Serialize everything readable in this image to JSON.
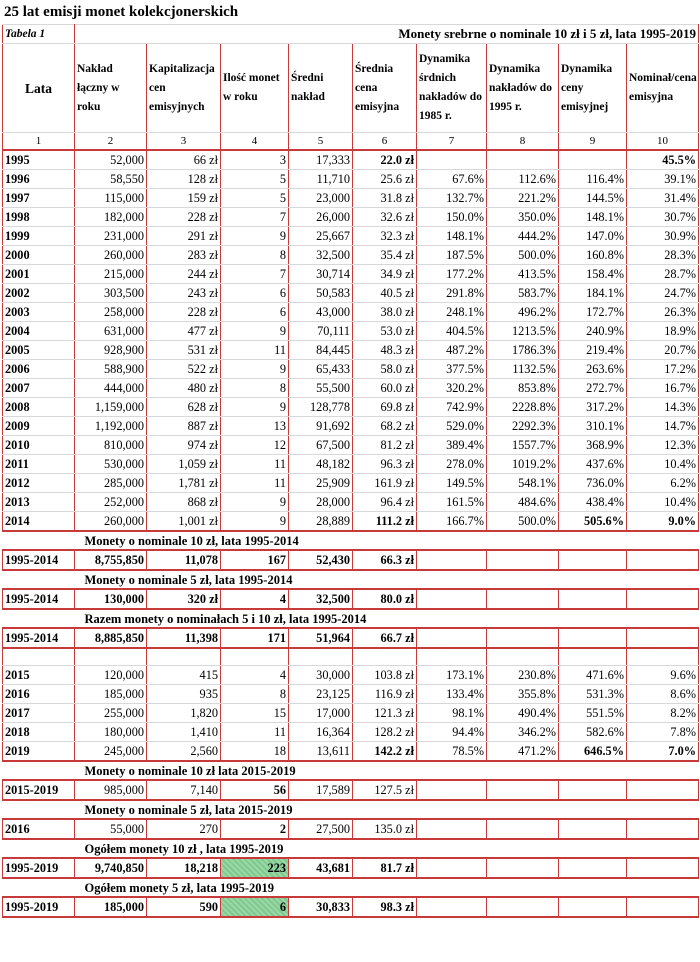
{
  "title": "25 lat emisji monet kolekcjonerskich",
  "table_label": "Tabela 1",
  "table_heading": "Monety srebrne o nominale 10 zł  i 5 zł, lata 1995-2019",
  "headers": [
    "Lata",
    "Nakład łączny w roku",
    "Kapitalizacja cen emisyjnych",
    "Ilość monet w roku",
    "Średni nakład",
    "Średnia cena emisyjna",
    "Dynamika śrdnich nakładów do 1985 r.",
    "Dynamika nakładów do 1995 r.",
    "Dynamika ceny emisyjnej",
    "Nominał/cena emisyjna"
  ],
  "col_numbers": [
    "1",
    "2",
    "3",
    "4",
    "5",
    "6",
    "7",
    "8",
    "9",
    "10"
  ],
  "rows_1995_2014": [
    [
      "1995",
      "52,000",
      "66 zł",
      "3",
      "17,333",
      "22.0 zł",
      "",
      "",
      "",
      "45.5%"
    ],
    [
      "1996",
      "58,550",
      "128 zł",
      "5",
      "11,710",
      "25.6 zł",
      "67.6%",
      "112.6%",
      "116.4%",
      "39.1%"
    ],
    [
      "1997",
      "115,000",
      "159 zł",
      "5",
      "23,000",
      "31.8 zł",
      "132.7%",
      "221.2%",
      "144.5%",
      "31.4%"
    ],
    [
      "1998",
      "182,000",
      "228 zł",
      "7",
      "26,000",
      "32.6 zł",
      "150.0%",
      "350.0%",
      "148.1%",
      "30.7%"
    ],
    [
      "1999",
      "231,000",
      "291 zł",
      "9",
      "25,667",
      "32.3 zł",
      "148.1%",
      "444.2%",
      "147.0%",
      "30.9%"
    ],
    [
      "2000",
      "260,000",
      "283 zł",
      "8",
      "32,500",
      "35.4 zł",
      "187.5%",
      "500.0%",
      "160.8%",
      "28.3%"
    ],
    [
      "2001",
      "215,000",
      "244 zł",
      "7",
      "30,714",
      "34.9 zł",
      "177.2%",
      "413.5%",
      "158.4%",
      "28.7%"
    ],
    [
      "2002",
      "303,500",
      "243 zł",
      "6",
      "50,583",
      "40.5 zł",
      "291.8%",
      "583.7%",
      "184.1%",
      "24.7%"
    ],
    [
      "2003",
      "258,000",
      "228 zł",
      "6",
      "43,000",
      "38.0 zł",
      "248.1%",
      "496.2%",
      "172.7%",
      "26.3%"
    ],
    [
      "2004",
      "631,000",
      "477 zł",
      "9",
      "70,111",
      "53.0 zł",
      "404.5%",
      "1213.5%",
      "240.9%",
      "18.9%"
    ],
    [
      "2005",
      "928,900",
      "531 zł",
      "11",
      "84,445",
      "48.3 zł",
      "487.2%",
      "1786.3%",
      "219.4%",
      "20.7%"
    ],
    [
      "2006",
      "588,900",
      "522 zł",
      "9",
      "65,433",
      "58.0 zł",
      "377.5%",
      "1132.5%",
      "263.6%",
      "17.2%"
    ],
    [
      "2007",
      "444,000",
      "480 zł",
      "8",
      "55,500",
      "60.0 zł",
      "320.2%",
      "853.8%",
      "272.7%",
      "16.7%"
    ],
    [
      "2008",
      "1,159,000",
      "628 zł",
      "9",
      "128,778",
      "69.8 zł",
      "742.9%",
      "2228.8%",
      "317.2%",
      "14.3%"
    ],
    [
      "2009",
      "1,192,000",
      "887 zł",
      "13",
      "91,692",
      "68.2 zł",
      "529.0%",
      "2292.3%",
      "310.1%",
      "14.7%"
    ],
    [
      "2010",
      "810,000",
      "974 zł",
      "12",
      "67,500",
      "81.2 zł",
      "389.4%",
      "1557.7%",
      "368.9%",
      "12.3%"
    ],
    [
      "2011",
      "530,000",
      "1,059 zł",
      "11",
      "48,182",
      "96.3 zł",
      "278.0%",
      "1019.2%",
      "437.6%",
      "10.4%"
    ],
    [
      "2012",
      "285,000",
      "1,781 zł",
      "11",
      "25,909",
      "161.9 zł",
      "149.5%",
      "548.1%",
      "736.0%",
      "6.2%"
    ],
    [
      "2013",
      "252,000",
      "868 zł",
      "9",
      "28,000",
      "96.4 zł",
      "161.5%",
      "484.6%",
      "438.4%",
      "10.4%"
    ],
    [
      "2014",
      "260,000",
      "1,001 zł",
      "9",
      "28,889",
      "111.2 zł",
      "166.7%",
      "500.0%",
      "505.6%",
      "9.0%"
    ]
  ],
  "caption_a": "Monety o nominale  10 zł, lata 1995-2014",
  "sum_a": [
    "1995-2014",
    "8,755,850",
    "11,078",
    "167",
    "52,430",
    "66.3 zł"
  ],
  "caption_b": "Monety o nominale  5 zł, lata 1995-2014",
  "sum_b": [
    "1995-2014",
    "130,000",
    "320 zł",
    "4",
    "32,500",
    "80.0 zł"
  ],
  "caption_c": "Razem monety o nominałach 5 i 10 zł, lata 1995-2014",
  "sum_c": [
    "1995-2014",
    "8,885,850",
    "11,398",
    "171",
    "51,964",
    "66.7 zł"
  ],
  "rows_2015_2019": [
    [
      "2015",
      "120,000",
      "415",
      "4",
      "30,000",
      "103.8 zł",
      "173.1%",
      "230.8%",
      "471.6%",
      "9.6%"
    ],
    [
      "2016",
      "185,000",
      "935",
      "8",
      "23,125",
      "116.9 zł",
      "133.4%",
      "355.8%",
      "531.3%",
      "8.6%"
    ],
    [
      "2017",
      "255,000",
      "1,820",
      "15",
      "17,000",
      "121.3 zł",
      "98.1%",
      "490.4%",
      "551.5%",
      "8.2%"
    ],
    [
      "2018",
      "180,000",
      "1,410",
      "11",
      "16,364",
      "128.2 zł",
      "94.4%",
      "346.2%",
      "582.6%",
      "7.8%"
    ],
    [
      "2019",
      "245,000",
      "2,560",
      "18",
      "13,611",
      "142.2 zł",
      "78.5%",
      "471.2%",
      "646.5%",
      "7.0%"
    ]
  ],
  "caption_d": "Monety o nominale  10 zł lata 2015-2019",
  "sum_d": [
    "2015-2019",
    "985,000",
    "7,140",
    "56",
    "17,589",
    "127.5 zł"
  ],
  "caption_e": "Monety o nominale  5 zł, lata 2015-2019",
  "sum_e": [
    "2016",
    "55,000",
    "270",
    "2",
    "27,500",
    "135.0 zł"
  ],
  "caption_f": "Ogółem monety 10 zł , lata 1995-2019",
  "sum_f": [
    "1995-2019",
    "9,740,850",
    "18,218",
    "223",
    "43,681",
    "81.7 zł"
  ],
  "caption_g": "Ogółem monety 5 zł, lata 1995-2019",
  "sum_g": [
    "1995-2019",
    "185,000",
    "590",
    "6",
    "30,833",
    "98.3 zł"
  ],
  "highlight_color": "#8fd19e",
  "grid_color": "#c83a3a"
}
